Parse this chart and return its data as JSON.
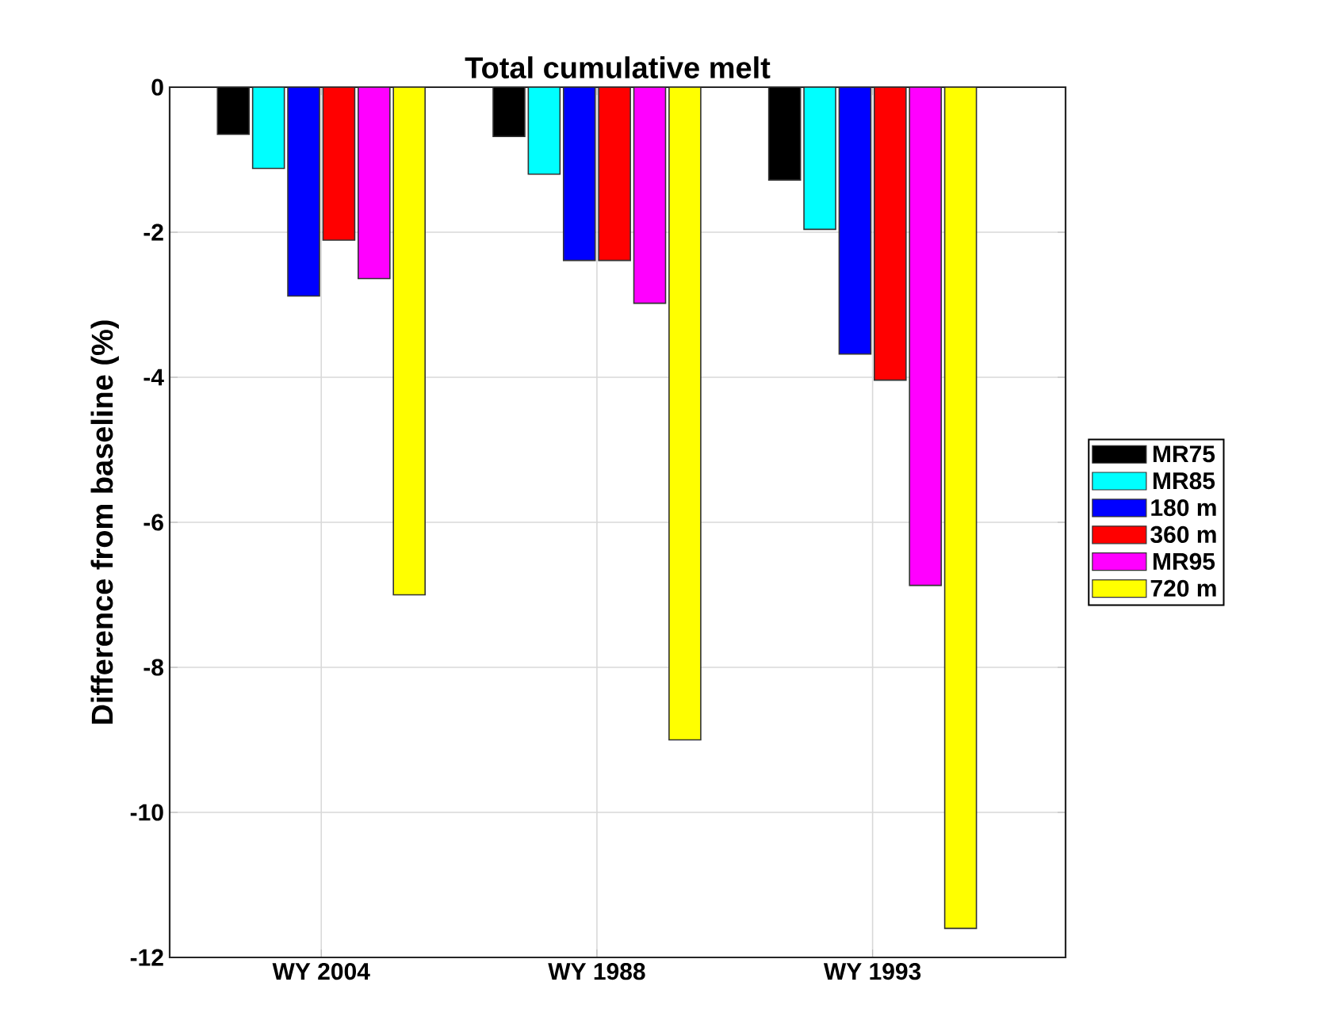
{
  "chart_data": {
    "type": "bar",
    "title": "Total cumulative melt",
    "ylabel": "Difference from baseline (%)",
    "categories": [
      "WY 2004",
      "WY 1988",
      "WY 1993"
    ],
    "series": [
      {
        "name": "MR75",
        "color": "#000000",
        "values": [
          -0.65,
          -0.68,
          -1.28
        ]
      },
      {
        "name": "MR85",
        "color": "#00ffff",
        "values": [
          -1.12,
          -1.2,
          -1.96
        ]
      },
      {
        "name": "180 m",
        "color": "#0000ff",
        "values": [
          -2.88,
          -2.39,
          -3.68
        ]
      },
      {
        "name": "360 m",
        "color": "#ff0000",
        "values": [
          -2.11,
          -2.39,
          -4.04
        ]
      },
      {
        "name": "MR95",
        "color": "#ff00ff",
        "values": [
          -2.64,
          -2.98,
          -6.87
        ]
      },
      {
        "name": "720 m",
        "color": "#ffff00",
        "values": [
          -7.0,
          -9.0,
          -11.6
        ]
      }
    ],
    "ylim": [
      -12,
      0
    ],
    "yticks": [
      -12,
      -10,
      -8,
      -6,
      -4,
      -2,
      0
    ],
    "grid": true,
    "legend": "right"
  }
}
